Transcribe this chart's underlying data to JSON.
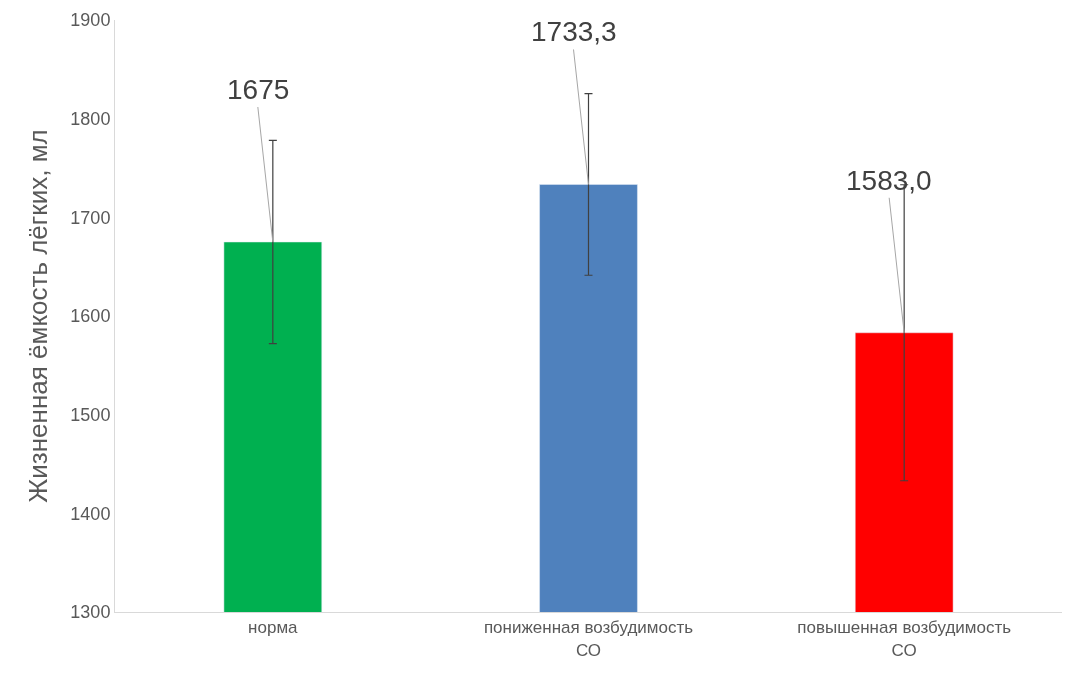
{
  "chart_data": {
    "type": "bar",
    "ylabel": "Жизненная ёмкость лёгких, мл",
    "categories": [
      "норма",
      "пониженная возбудимость СО",
      "повышенная возбудимость СО"
    ],
    "values": [
      1675,
      1733.3,
      1583.0
    ],
    "colors": [
      "#00b050",
      "#4f81bd",
      "#ff0000"
    ],
    "value_labels": [
      "1675",
      "1733,3",
      "1583,0"
    ],
    "errors": [
      103,
      92,
      150
    ],
    "ylim": [
      1300,
      1900
    ],
    "yticks": [
      1300,
      1400,
      1500,
      1600,
      1700,
      1800,
      1900
    ],
    "data_labels": false
  }
}
